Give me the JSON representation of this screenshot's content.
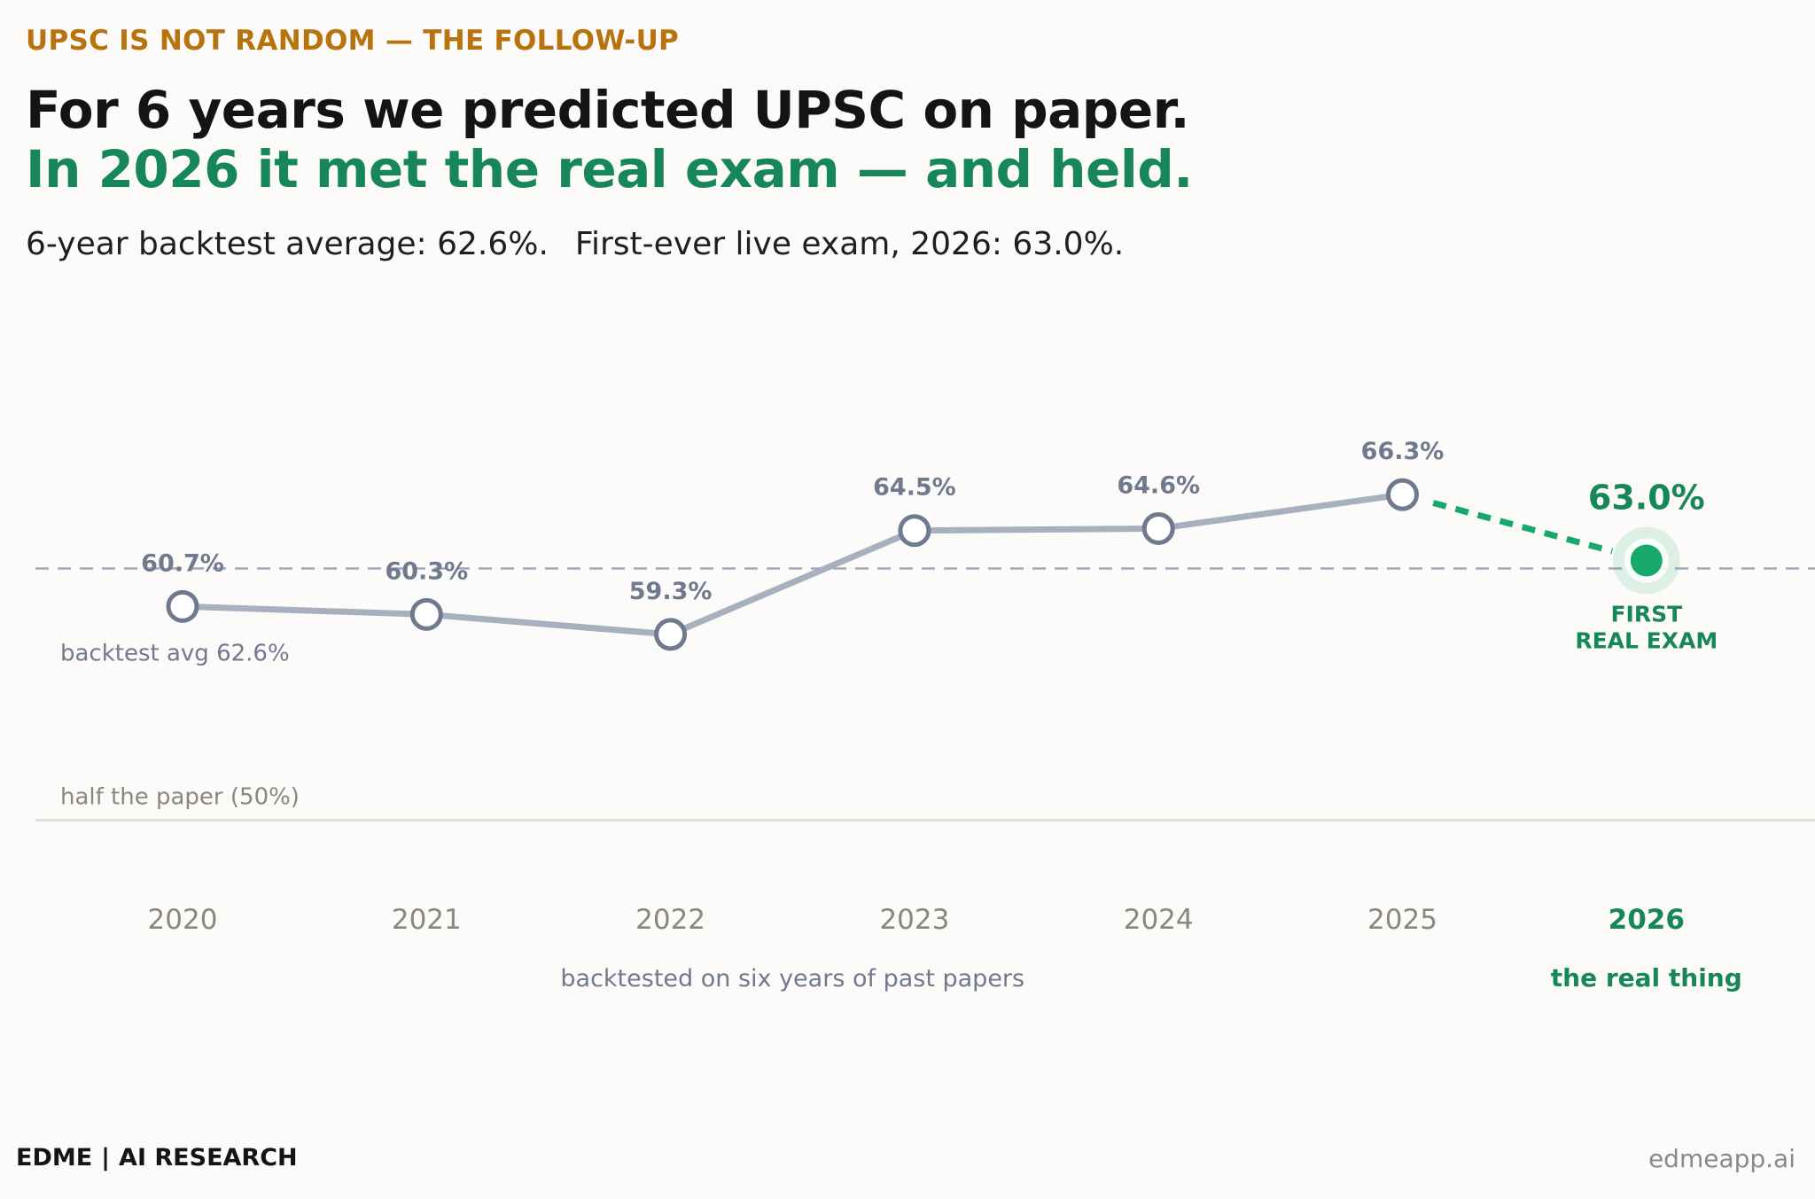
{
  "header": {
    "kicker": "UPSC IS NOT RANDOM — THE FOLLOW-UP",
    "title_line1": "For 6 years we predicted UPSC on paper.",
    "title_line2": "In 2026 it met the real exam — and held.",
    "subtitle_part1": "6-year backtest average: 62.6%.",
    "subtitle_part2": "First-ever live exam, 2026: 63.0%."
  },
  "colors": {
    "kicker": "#b8730f",
    "accent_green": "#17875a",
    "marker_green": "#17a86b",
    "series_gray": "#a8b0bf",
    "marker_stroke": "#6f7a8e",
    "value_label": "#6f7a8e",
    "axis_text": "#8a8680",
    "reference_line": "#a6a8b8"
  },
  "chart_data": {
    "type": "line",
    "x": [
      "2020",
      "2021",
      "2022",
      "2023",
      "2024",
      "2025",
      "2026"
    ],
    "series": [
      {
        "values": [
          60.7,
          60.3,
          59.3,
          64.5,
          64.6,
          66.3,
          null
        ],
        "labels": [
          "60.7%",
          "60.3%",
          "59.3%",
          "64.5%",
          "64.6%",
          "66.3%",
          null
        ]
      },
      {
        "values": [
          null,
          null,
          null,
          null,
          null,
          66.3,
          63.0
        ],
        "labels": [
          null,
          null,
          null,
          null,
          null,
          null,
          "63.0%"
        ]
      }
    ],
    "ylim": [
      49,
      70
    ],
    "grid": false,
    "reference_lines": [
      {
        "value": 62.6,
        "label": "backtest avg 62.6%",
        "style": "dashed"
      },
      {
        "value": 50,
        "label": "half the paper (50%)",
        "style": "solid"
      }
    ],
    "annotations": {
      "final_point_label_line1": "FIRST",
      "final_point_label_line2": "REAL EXAM",
      "backtest_caption": "backtested on six years of past papers",
      "live_caption": "the real thing"
    }
  },
  "footer": {
    "brand": "EDME",
    "divider": "|",
    "team": "AI RESEARCH",
    "url": "edmeapp.ai"
  }
}
